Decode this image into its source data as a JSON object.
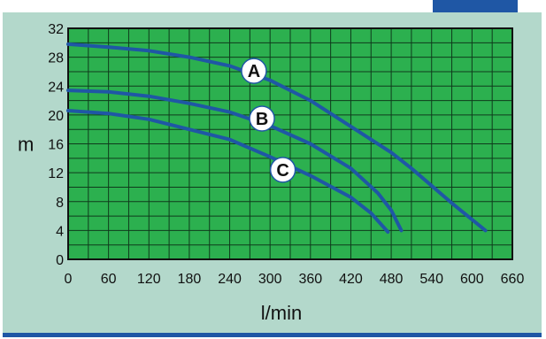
{
  "colors": {
    "panel": "#b3d8cb",
    "plot_background": "#2cb04f",
    "grid": "#0f3b1c",
    "curve": "#1f57a5",
    "accent_bar": "#1f57a5",
    "label_bubble": "#ffffff"
  },
  "chart_data": {
    "type": "line",
    "title": "",
    "xlabel": "l/min",
    "ylabel": "m",
    "xlim": [
      0,
      660
    ],
    "ylim": [
      0,
      32
    ],
    "x_ticks": [
      0,
      60,
      120,
      180,
      240,
      300,
      360,
      420,
      480,
      540,
      600,
      660
    ],
    "y_ticks": [
      0,
      4,
      8,
      12,
      16,
      20,
      24,
      28,
      32
    ],
    "grid": true,
    "series": [
      {
        "name": "A",
        "points": [
          [
            0,
            29.8
          ],
          [
            60,
            29.4
          ],
          [
            120,
            28.9
          ],
          [
            180,
            28.0
          ],
          [
            240,
            26.8
          ],
          [
            300,
            24.8
          ],
          [
            360,
            22.0
          ],
          [
            420,
            18.4
          ],
          [
            480,
            14.8
          ],
          [
            510,
            12.6
          ],
          [
            570,
            7.8
          ],
          [
            620,
            4.0
          ]
        ],
        "label_at": [
          276,
          26.1
        ]
      },
      {
        "name": "B",
        "points": [
          [
            0,
            23.4
          ],
          [
            60,
            23.2
          ],
          [
            120,
            22.6
          ],
          [
            180,
            21.6
          ],
          [
            240,
            20.4
          ],
          [
            300,
            18.5
          ],
          [
            360,
            16.0
          ],
          [
            420,
            12.6
          ],
          [
            460,
            9.2
          ],
          [
            480,
            6.8
          ],
          [
            495,
            4.0
          ]
        ],
        "label_at": [
          288,
          19.5
        ]
      },
      {
        "name": "C",
        "points": [
          [
            0,
            20.6
          ],
          [
            60,
            20.2
          ],
          [
            120,
            19.4
          ],
          [
            180,
            18.0
          ],
          [
            240,
            16.6
          ],
          [
            300,
            14.2
          ],
          [
            360,
            11.6
          ],
          [
            420,
            8.6
          ],
          [
            450,
            6.4
          ],
          [
            475,
            3.8
          ]
        ],
        "label_at": [
          319,
          12.4
        ]
      }
    ]
  }
}
